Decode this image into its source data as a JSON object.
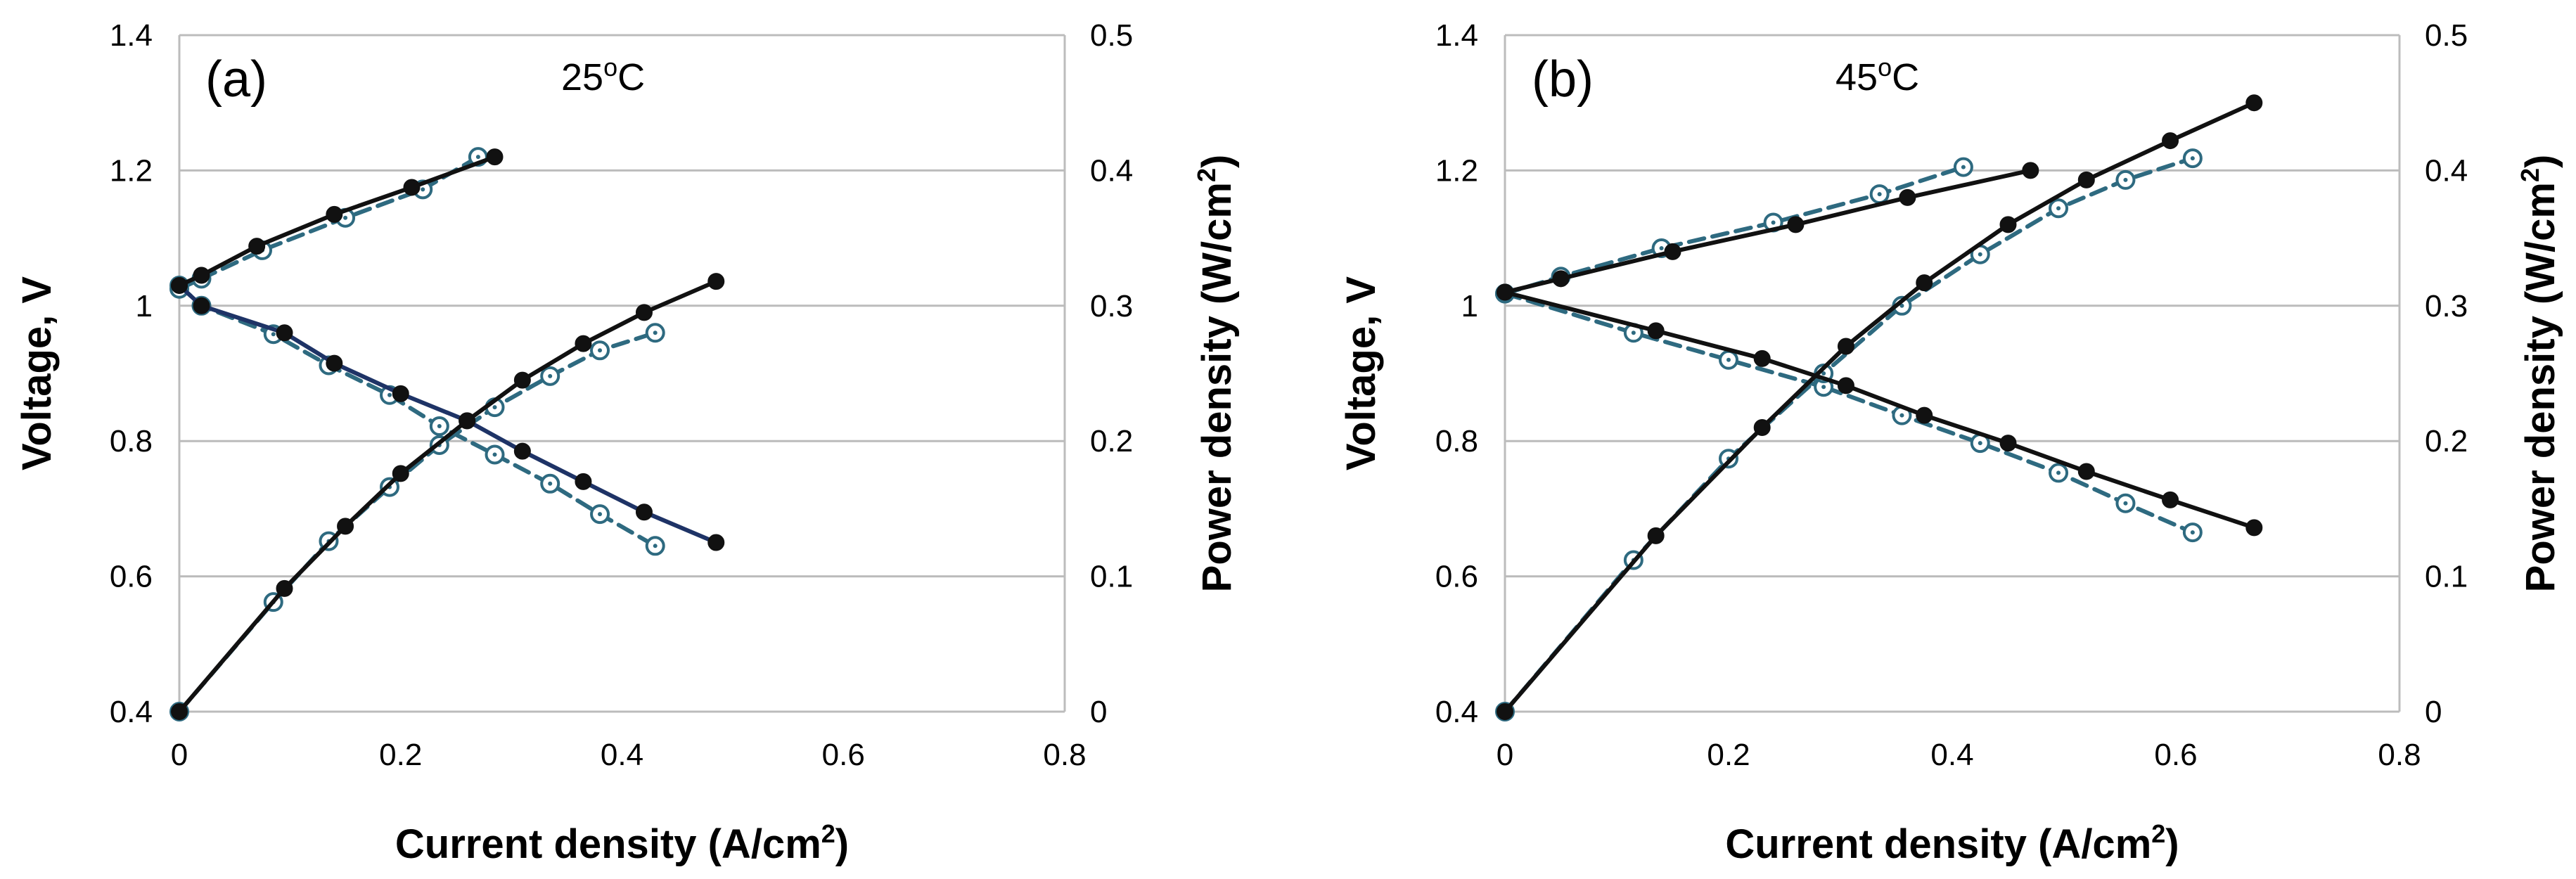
{
  "chart_data": [
    {
      "type": "line",
      "panel_label": "(a)",
      "temperature_label": {
        "main": "25",
        "sup": "o",
        "unit": "C"
      },
      "xlabel": {
        "main": "Current density (A/cm",
        "sup": "2",
        "close": ")"
      },
      "ylabel_left": "Voltage, V",
      "ylabel_right": {
        "main": "Power density (W/cm",
        "sup": "2",
        "close": ")"
      },
      "xlim": [
        0,
        0.8
      ],
      "ylim_left": [
        0.4,
        1.4
      ],
      "ylim_right": [
        0,
        0.5
      ],
      "x_ticks": [
        "0",
        "0.2",
        "0.4",
        "0.6",
        "0.8"
      ],
      "y_left_ticks": [
        "0.4",
        "0.6",
        "0.8",
        "1",
        "1.2",
        "1.4"
      ],
      "y_right_ticks": [
        "0",
        "0.1",
        "0.2",
        "0.3",
        "0.4",
        "0.5"
      ],
      "grid": "horizontal",
      "series": [
        {
          "name": "voltage-solid",
          "axis": "left",
          "marker": "filled",
          "line": "solid",
          "color": "#1e3366",
          "x": [
            0,
            0.02,
            0.095,
            0.14,
            0.2,
            0.26,
            0.31,
            0.365,
            0.42,
            0.485
          ],
          "y": [
            1.03,
            1.0,
            0.96,
            0.915,
            0.87,
            0.83,
            0.785,
            0.74,
            0.695,
            0.65
          ]
        },
        {
          "name": "voltage-dashed",
          "axis": "left",
          "marker": "open",
          "line": "dashed",
          "color": "#2e6a80",
          "x": [
            0,
            0.02,
            0.085,
            0.135,
            0.19,
            0.235,
            0.285,
            0.335,
            0.38,
            0.43
          ],
          "y": [
            1.03,
            1.0,
            0.958,
            0.912,
            0.868,
            0.822,
            0.78,
            0.737,
            0.692,
            0.645
          ]
        },
        {
          "name": "power-solid",
          "axis": "right",
          "marker": "filled",
          "line": "solid",
          "color": "#111111",
          "x": [
            0,
            0.095,
            0.15,
            0.2,
            0.26,
            0.31,
            0.365,
            0.42,
            0.485
          ],
          "y": [
            0,
            0.091,
            0.137,
            0.176,
            0.215,
            0.245,
            0.272,
            0.295,
            0.318
          ]
        },
        {
          "name": "power-dashed",
          "axis": "right",
          "marker": "open",
          "line": "dashed",
          "color": "#2e6a80",
          "x": [
            0,
            0.085,
            0.135,
            0.19,
            0.235,
            0.285,
            0.335,
            0.38,
            0.43
          ],
          "y": [
            0,
            0.081,
            0.126,
            0.166,
            0.197,
            0.225,
            0.248,
            0.267,
            0.28
          ]
        },
        {
          "name": "upper-solid",
          "axis": "left",
          "marker": "filled",
          "line": "solid",
          "color": "#111111",
          "x": [
            0,
            0.02,
            0.07,
            0.14,
            0.21,
            0.285
          ],
          "y": [
            1.03,
            1.045,
            1.088,
            1.135,
            1.175,
            1.22
          ]
        },
        {
          "name": "upper-dashed",
          "axis": "left",
          "marker": "open",
          "line": "dashed",
          "color": "#2e6a80",
          "x": [
            0,
            0.02,
            0.075,
            0.15,
            0.22,
            0.27
          ],
          "y": [
            1.025,
            1.04,
            1.082,
            1.13,
            1.172,
            1.22
          ]
        }
      ]
    },
    {
      "type": "line",
      "panel_label": "(b)",
      "temperature_label": {
        "main": "45",
        "sup": "o",
        "unit": "C"
      },
      "xlabel": {
        "main": "Current density (A/cm",
        "sup": "2",
        "close": ")"
      },
      "ylabel_left": "Voltage, V",
      "ylabel_right": {
        "main": "Power density (W/cm",
        "sup": "2",
        "close": ")"
      },
      "xlim": [
        0,
        0.8
      ],
      "ylim_left": [
        0.4,
        1.4
      ],
      "ylim_right": [
        0,
        0.5
      ],
      "x_ticks": [
        "0",
        "0.2",
        "0.4",
        "0.6",
        "0.8"
      ],
      "y_left_ticks": [
        "0.4",
        "0.6",
        "0.8",
        "1",
        "1.2",
        "1.4"
      ],
      "y_right_ticks": [
        "0",
        "0.1",
        "0.2",
        "0.3",
        "0.4",
        "0.5"
      ],
      "grid": "horizontal",
      "series": [
        {
          "name": "voltage-solid",
          "axis": "left",
          "marker": "filled",
          "line": "solid",
          "color": "#111111",
          "x": [
            0,
            0.135,
            0.23,
            0.305,
            0.375,
            0.45,
            0.52,
            0.595,
            0.67
          ],
          "y": [
            1.02,
            0.963,
            0.922,
            0.882,
            0.838,
            0.797,
            0.755,
            0.713,
            0.672
          ]
        },
        {
          "name": "voltage-dashed",
          "axis": "left",
          "marker": "open",
          "line": "dashed",
          "color": "#2e6a80",
          "x": [
            0,
            0.115,
            0.2,
            0.285,
            0.355,
            0.425,
            0.495,
            0.555,
            0.615
          ],
          "y": [
            1.018,
            0.96,
            0.92,
            0.88,
            0.838,
            0.797,
            0.753,
            0.708,
            0.665
          ]
        },
        {
          "name": "power-solid",
          "axis": "right",
          "marker": "filled",
          "line": "solid",
          "color": "#111111",
          "x": [
            0,
            0.135,
            0.23,
            0.305,
            0.375,
            0.45,
            0.52,
            0.595,
            0.67
          ],
          "y": [
            0,
            0.13,
            0.21,
            0.27,
            0.317,
            0.36,
            0.393,
            0.422,
            0.45
          ]
        },
        {
          "name": "power-dashed",
          "axis": "right",
          "marker": "open",
          "line": "dashed",
          "color": "#2e6a80",
          "x": [
            0,
            0.115,
            0.2,
            0.285,
            0.355,
            0.425,
            0.495,
            0.555,
            0.615
          ],
          "y": [
            0,
            0.112,
            0.187,
            0.25,
            0.3,
            0.338,
            0.372,
            0.393,
            0.409
          ]
        },
        {
          "name": "upper-solid",
          "axis": "left",
          "marker": "filled",
          "line": "solid",
          "color": "#111111",
          "x": [
            0,
            0.05,
            0.15,
            0.26,
            0.36,
            0.47
          ],
          "y": [
            1.02,
            1.04,
            1.08,
            1.12,
            1.16,
            1.2
          ]
        },
        {
          "name": "upper-dashed",
          "axis": "left",
          "marker": "open",
          "line": "dashed",
          "color": "#2e6a80",
          "x": [
            0,
            0.05,
            0.14,
            0.24,
            0.335,
            0.41
          ],
          "y": [
            1.018,
            1.043,
            1.085,
            1.123,
            1.165,
            1.205
          ]
        }
      ]
    }
  ]
}
